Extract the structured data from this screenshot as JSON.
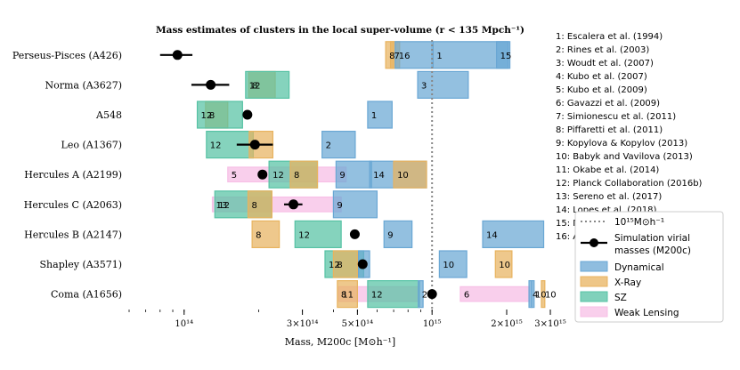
{
  "chart_data": {
    "type": "interval",
    "title": "Mass estimates of clusters in the local super-volume (r < 135 Mpch⁻¹)",
    "xlabel": "Mass, M200c [M⊙h⁻¹]",
    "xscale": "log",
    "xlim": [
      60000000000000,
      3100000000000000
    ],
    "x_ticks": [
      {
        "value": 100000000000000,
        "label": "10¹⁴"
      },
      {
        "value": 300000000000000,
        "label": "3×10¹⁴"
      },
      {
        "value": 500000000000000,
        "label": "5×10¹⁴"
      },
      {
        "value": 1000000000000000,
        "label": "10¹⁵"
      },
      {
        "value": 2000000000000000,
        "label": "2×10¹⁵"
      },
      {
        "value": 3000000000000000,
        "label": "3×10¹⁵"
      }
    ],
    "reference_line": {
      "value": 1000000000000000,
      "label": "10¹⁵M⊙h⁻¹"
    },
    "method_colors": {
      "dynamical": "#6aa7d4",
      "xray": "#e8b35f",
      "sz": "#56c2a4",
      "lensing": "#f7bfe6"
    },
    "legend": {
      "reference": "10¹⁵M⊙h⁻¹",
      "simulation_line1": "Simulation virial",
      "simulation_line2": "masses (M200c)",
      "dynamical": "Dynamical",
      "xray": "X-Ray",
      "sz": "SZ",
      "lensing": "Weak Lensing"
    },
    "references": [
      "1: Escalera et al. (1994)",
      "2: Rines et al. (2003)",
      "3: Woudt et al. (2007)",
      "4: Kubo et al. (2007)",
      "5: Kubo et al. (2009)",
      "6: Gavazzi et al. (2009)",
      "7: Simionescu et al. (2011)",
      "8: Piffaretti et al. (2011)",
      "9: Kopylova & Kopylov (2013)",
      "10: Babyk and Vavilova (2013)",
      "11: Okabe et al. (2014)",
      "12: Planck Collaboration (2016b)",
      "13: Sereno et al. (2017)",
      "14: Lopes et al. (2018)",
      "15: Meusinger et al. (2020)",
      "16: Aguerri et al. (2020)"
    ],
    "clusters": [
      {
        "name": "Perseus-Pisces (A426)",
        "sim": {
          "value": 94000000000000,
          "lo": 80000000000000,
          "hi": 108000000000000
        },
        "bands": [
          {
            "method": "xray",
            "ref": "8",
            "lo": 650000000000000,
            "hi": 700000000000000
          },
          {
            "method": "xray",
            "ref": "7",
            "lo": 680000000000000,
            "hi": 740000000000000
          },
          {
            "method": "dynamical",
            "ref": "16",
            "lo": 710000000000000,
            "hi": 1000000000000000
          },
          {
            "method": "dynamical",
            "ref": "1",
            "lo": 1010000000000000,
            "hi": 2030000000000000
          },
          {
            "method": "dynamical",
            "ref": "15",
            "lo": 1820000000000000,
            "hi": 2060000000000000
          }
        ]
      },
      {
        "name": "Norma (A3627)",
        "sim": {
          "value": 128000000000000,
          "lo": 107000000000000,
          "hi": 152000000000000
        },
        "bands": [
          {
            "method": "xray",
            "ref": "8",
            "lo": 182000000000000,
            "hi": 233000000000000
          },
          {
            "method": "sz",
            "ref": "12",
            "lo": 177000000000000,
            "hi": 265000000000000
          },
          {
            "method": "dynamical",
            "ref": "3",
            "lo": 875000000000000,
            "hi": 1400000000000000
          }
        ]
      },
      {
        "name": "A548",
        "sim": {
          "value": 180000000000000,
          "lo": 180000000000000,
          "hi": 180000000000000
        },
        "bands": [
          {
            "method": "xray",
            "ref": "8",
            "lo": 122000000000000,
            "hi": 150000000000000
          },
          {
            "method": "sz",
            "ref": "12",
            "lo": 113000000000000,
            "hi": 172000000000000
          },
          {
            "method": "dynamical",
            "ref": "1",
            "lo": 550000000000000,
            "hi": 690000000000000
          }
        ]
      },
      {
        "name": "Leo (A1367)",
        "sim": {
          "value": 193000000000000,
          "lo": 163000000000000,
          "hi": 228000000000000
        },
        "bands": [
          {
            "method": "sz",
            "ref": "12",
            "lo": 123000000000000,
            "hi": 190000000000000
          },
          {
            "method": "xray",
            "ref": "8",
            "lo": 183000000000000,
            "hi": 228000000000000
          },
          {
            "method": "dynamical",
            "ref": "2",
            "lo": 360000000000000,
            "hi": 490000000000000
          }
        ]
      },
      {
        "name": "Hercules A (A2199)",
        "sim": {
          "value": 207000000000000,
          "lo": 207000000000000,
          "hi": 207000000000000
        },
        "bands": [
          {
            "method": "lensing",
            "ref": "5",
            "lo": 150000000000000,
            "hi": 450000000000000
          },
          {
            "method": "sz",
            "ref": "12",
            "lo": 220000000000000,
            "hi": 345000000000000
          },
          {
            "method": "xray",
            "ref": "8",
            "lo": 268000000000000,
            "hi": 345000000000000
          },
          {
            "method": "dynamical",
            "ref": "9",
            "lo": 410000000000000,
            "hi": 570000000000000
          },
          {
            "method": "dynamical",
            "ref": "14",
            "lo": 560000000000000,
            "hi": 950000000000000
          },
          {
            "method": "xray",
            "ref": "10",
            "lo": 700000000000000,
            "hi": 950000000000000
          }
        ]
      },
      {
        "name": "Hercules C (A2063)",
        "sim": {
          "value": 276000000000000,
          "lo": 253000000000000,
          "hi": 300000000000000
        },
        "bands": [
          {
            "method": "lensing",
            "ref": "13",
            "lo": 130000000000000,
            "hi": 430000000000000
          },
          {
            "method": "sz",
            "ref": "12",
            "lo": 133000000000000,
            "hi": 225000000000000
          },
          {
            "method": "xray",
            "ref": "8",
            "lo": 181000000000000,
            "hi": 226000000000000
          },
          {
            "method": "dynamical",
            "ref": "9",
            "lo": 400000000000000,
            "hi": 600000000000000
          }
        ]
      },
      {
        "name": "Hercules B (A2147)",
        "sim": {
          "value": 488000000000000,
          "lo": 470000000000000,
          "hi": 505000000000000
        },
        "bands": [
          {
            "method": "xray",
            "ref": "8",
            "lo": 188000000000000,
            "hi": 242000000000000
          },
          {
            "method": "sz",
            "ref": "12",
            "lo": 280000000000000,
            "hi": 430000000000000
          },
          {
            "method": "dynamical",
            "ref": "9",
            "lo": 640000000000000,
            "hi": 830000000000000
          },
          {
            "method": "dynamical",
            "ref": "14",
            "lo": 1600000000000000,
            "hi": 2820000000000000
          }
        ]
      },
      {
        "name": "Shapley (A3571)",
        "sim": {
          "value": 525000000000000,
          "lo": 525000000000000,
          "hi": 525000000000000
        },
        "bands": [
          {
            "method": "sz",
            "ref": "12",
            "lo": 370000000000000,
            "hi": 530000000000000
          },
          {
            "method": "xray",
            "ref": "8",
            "lo": 400000000000000,
            "hi": 500000000000000
          },
          {
            "method": "dynamical",
            "ref": "4",
            "lo": 505000000000000,
            "hi": 560000000000000
          },
          {
            "method": "dynamical",
            "ref": "10",
            "lo": 1070000000000000,
            "hi": 1380000000000000
          },
          {
            "method": "xray",
            "ref": "10",
            "lo": 1800000000000000,
            "hi": 2100000000000000
          }
        ]
      },
      {
        "name": "Coma (A1656)",
        "sim": {
          "value": 1000000000000000,
          "lo": 1000000000000000,
          "hi": 1000000000000000
        },
        "bands": [
          {
            "method": "lensing",
            "ref": "11",
            "lo": 420000000000000,
            "hi": 880000000000000
          },
          {
            "method": "xray",
            "ref": "8",
            "lo": 415000000000000,
            "hi": 500000000000000
          },
          {
            "method": "sz",
            "ref": "12",
            "lo": 550000000000000,
            "hi": 890000000000000
          },
          {
            "method": "dynamical",
            "ref": "2",
            "lo": 880000000000000,
            "hi": 920000000000000
          },
          {
            "method": "lensing",
            "ref": "6",
            "lo": 1300000000000000,
            "hi": 2470000000000000
          },
          {
            "method": "dynamical",
            "ref": "4",
            "lo": 2460000000000000,
            "hi": 2520000000000000
          },
          {
            "method": "dynamical",
            "ref": "10",
            "lo": 2520000000000000,
            "hi": 2580000000000000
          },
          {
            "method": "xray",
            "ref": "10",
            "lo": 2760000000000000,
            "hi": 2850000000000000
          }
        ]
      }
    ]
  }
}
